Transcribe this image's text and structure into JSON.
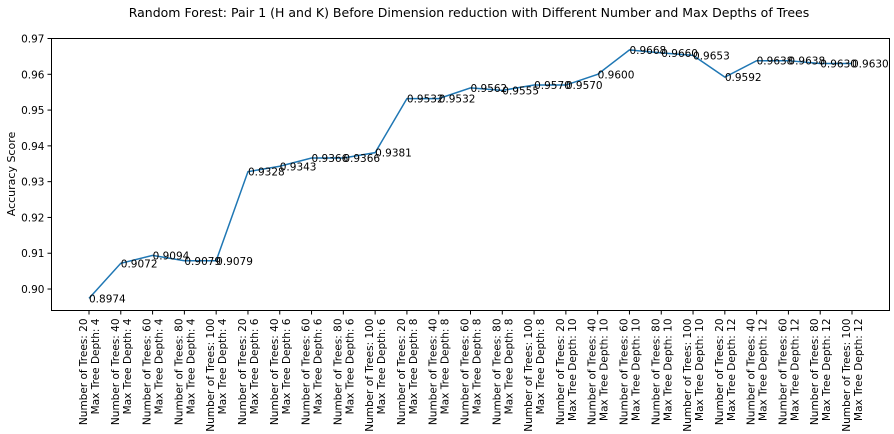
{
  "chart_data": {
    "type": "line",
    "title": "Random Forest: Pair 1 (H and K) Before Dimension reduction with Different Number and Max Depths of Trees",
    "ylabel": "Accuracy Score",
    "xlabel": "",
    "ylim": [
      0.894,
      0.97
    ],
    "yticks": [
      "0.90",
      "0.91",
      "0.92",
      "0.93",
      "0.94",
      "0.95",
      "0.96",
      "0.97"
    ],
    "grid": false,
    "line_color": "#1f77b4",
    "categories": [
      {
        "trees": "Number of Trees: 20",
        "depth": "Max Tree Depth: 4"
      },
      {
        "trees": "Number of Trees: 40",
        "depth": "Max Tree Depth: 4"
      },
      {
        "trees": "Number of Trees: 60",
        "depth": "Max Tree Depth: 4"
      },
      {
        "trees": "Number of Trees: 80",
        "depth": "Max Tree Depth: 4"
      },
      {
        "trees": "Number of Trees: 100",
        "depth": "Max Tree Depth: 4"
      },
      {
        "trees": "Number of Trees: 20",
        "depth": "Max Tree Depth: 6"
      },
      {
        "trees": "Number of Trees: 40",
        "depth": "Max Tree Depth: 6"
      },
      {
        "trees": "Number of Trees: 60",
        "depth": "Max Tree Depth: 6"
      },
      {
        "trees": "Number of Trees: 80",
        "depth": "Max Tree Depth: 6"
      },
      {
        "trees": "Number of Trees: 100",
        "depth": "Max Tree Depth: 6"
      },
      {
        "trees": "Number of Trees: 20",
        "depth": "Max Tree Depth: 8"
      },
      {
        "trees": "Number of Trees: 40",
        "depth": "Max Tree Depth: 8"
      },
      {
        "trees": "Number of Trees: 60",
        "depth": "Max Tree Depth: 8"
      },
      {
        "trees": "Number of Trees: 80",
        "depth": "Max Tree Depth: 8"
      },
      {
        "trees": "Number of Trees: 100",
        "depth": "Max Tree Depth: 8"
      },
      {
        "trees": "Number of Trees: 20",
        "depth": "Max Tree Depth: 10"
      },
      {
        "trees": "Number of Trees: 40",
        "depth": "Max Tree Depth: 10"
      },
      {
        "trees": "Number of Trees: 60",
        "depth": "Max Tree Depth: 10"
      },
      {
        "trees": "Number of Trees: 80",
        "depth": "Max Tree Depth: 10"
      },
      {
        "trees": "Number of Trees: 100",
        "depth": "Max Tree Depth: 10"
      },
      {
        "trees": "Number of Trees: 20",
        "depth": "Max Tree Depth: 12"
      },
      {
        "trees": "Number of Trees: 40",
        "depth": "Max Tree Depth: 12"
      },
      {
        "trees": "Number of Trees: 60",
        "depth": "Max Tree Depth: 12"
      },
      {
        "trees": "Number of Trees: 80",
        "depth": "Max Tree Depth: 12"
      },
      {
        "trees": "Number of Trees: 100",
        "depth": "Max Tree Depth: 12"
      }
    ],
    "values": [
      0.8974,
      0.9072,
      0.9094,
      0.9079,
      0.9079,
      0.9328,
      0.9343,
      0.9366,
      0.9366,
      0.9381,
      0.9532,
      0.9532,
      0.9562,
      0.9555,
      0.957,
      0.957,
      0.96,
      0.9668,
      0.966,
      0.9653,
      0.9592,
      0.9638,
      0.9638,
      0.963,
      0.963
    ],
    "labels": [
      "0.8974",
      "0.9072",
      "0.9094",
      "0.9079",
      "0.9079",
      "0.9328",
      "0.9343",
      "0.9366",
      "0.9366",
      "0.9381",
      "0.9532",
      "0.9532",
      "0.9562",
      "0.9555",
      "0.9570",
      "0.9570",
      "0.9600",
      "0.9668",
      "0.9660",
      "0.9653",
      "0.9592",
      "0.9638",
      "0.9638",
      "0.9630",
      "0.9630"
    ]
  }
}
